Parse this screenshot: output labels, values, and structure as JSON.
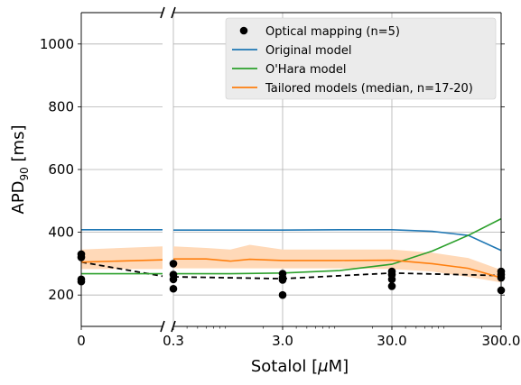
{
  "chart_data": {
    "type": "line",
    "xlabel": "Sotalol [μM]",
    "ylabel": "APD90 [ms]",
    "ylabel_main": "APD",
    "ylabel_sub": "90",
    "ylabel_unit": " [ms]",
    "xlabel_main": "Sotalol [",
    "xlabel_mu": "μ",
    "xlabel_unit": "M]",
    "x_scale": "broken: linear segment at 0, log segment 0.3–300",
    "ylim": [
      100,
      1100
    ],
    "y_ticks": [
      "200",
      "400",
      "600",
      "800",
      "1000"
    ],
    "x_ticks": [
      "0",
      "0.3",
      "3.0",
      "30.0",
      "300.0"
    ],
    "grid": true,
    "legend_position": "top-right",
    "legend": [
      {
        "label": "Optical mapping (n=5)",
        "color": "#000000",
        "marker": "dot"
      },
      {
        "label": "Original model",
        "color": "#1f77b4",
        "marker": "line"
      },
      {
        "label": "O'Hara model",
        "color": "#2ca02c",
        "marker": "line"
      },
      {
        "label": "Tailored models (median, n=17-20)",
        "color": "#ff7f0e",
        "marker": "line"
      }
    ],
    "series": [
      {
        "name": "Optical mapping (n=5)",
        "kind": "scatter",
        "color": "#000000",
        "points": [
          {
            "x": 0,
            "y": 330
          },
          {
            "x": 0,
            "y": 320
          },
          {
            "x": 0,
            "y": 250
          },
          {
            "x": 0,
            "y": 243
          },
          {
            "x": 0.3,
            "y": 300
          },
          {
            "x": 0.3,
            "y": 265
          },
          {
            "x": 0.3,
            "y": 250
          },
          {
            "x": 0.3,
            "y": 220
          },
          {
            "x": 3,
            "y": 268
          },
          {
            "x": 3,
            "y": 255
          },
          {
            "x": 3,
            "y": 248
          },
          {
            "x": 3,
            "y": 200
          },
          {
            "x": 30,
            "y": 275
          },
          {
            "x": 30,
            "y": 265
          },
          {
            "x": 30,
            "y": 250
          },
          {
            "x": 30,
            "y": 228
          },
          {
            "x": 300,
            "y": 275
          },
          {
            "x": 300,
            "y": 265
          },
          {
            "x": 300,
            "y": 255
          },
          {
            "x": 300,
            "y": 215
          }
        ]
      },
      {
        "name": "Optical mapping mean",
        "kind": "dashed",
        "color": "#000000",
        "points": [
          {
            "x": 0,
            "y": 305
          },
          {
            "x": 0.08,
            "y": 260
          },
          {
            "x": 0.3,
            "y": 258
          },
          {
            "x": 3,
            "y": 252
          },
          {
            "x": 30,
            "y": 270
          },
          {
            "x": 300,
            "y": 262
          }
        ]
      },
      {
        "name": "Original model",
        "kind": "line",
        "color": "#1f77b4",
        "points": [
          {
            "x": 0,
            "y": 408
          },
          {
            "x": 0.08,
            "y": 408
          },
          {
            "x": 0.3,
            "y": 407
          },
          {
            "x": 1,
            "y": 407
          },
          {
            "x": 3,
            "y": 407
          },
          {
            "x": 10,
            "y": 408
          },
          {
            "x": 30,
            "y": 408
          },
          {
            "x": 70,
            "y": 403
          },
          {
            "x": 150,
            "y": 390
          },
          {
            "x": 300,
            "y": 342
          }
        ]
      },
      {
        "name": "O'Hara model",
        "kind": "line",
        "color": "#2ca02c",
        "points": [
          {
            "x": 0,
            "y": 268
          },
          {
            "x": 0.08,
            "y": 268
          },
          {
            "x": 0.3,
            "y": 268
          },
          {
            "x": 1,
            "y": 268
          },
          {
            "x": 3,
            "y": 270
          },
          {
            "x": 10,
            "y": 278
          },
          {
            "x": 30,
            "y": 298
          },
          {
            "x": 70,
            "y": 340
          },
          {
            "x": 150,
            "y": 390
          },
          {
            "x": 300,
            "y": 443
          }
        ]
      },
      {
        "name": "Tailored models (median, n=17-20)",
        "kind": "band",
        "color": "#ff7f0e",
        "band_color": "#ffd9b8",
        "points": [
          {
            "x": 0,
            "y": 305,
            "lo": 283,
            "hi": 345
          },
          {
            "x": 0.08,
            "y": 312,
            "lo": 283,
            "hi": 355
          },
          {
            "x": 0.3,
            "y": 315,
            "lo": 285,
            "hi": 355
          },
          {
            "x": 0.6,
            "y": 315,
            "lo": 285,
            "hi": 350
          },
          {
            "x": 1,
            "y": 308,
            "lo": 285,
            "hi": 345
          },
          {
            "x": 1.5,
            "y": 314,
            "lo": 285,
            "hi": 360
          },
          {
            "x": 3,
            "y": 310,
            "lo": 285,
            "hi": 345
          },
          {
            "x": 10,
            "y": 310,
            "lo": 285,
            "hi": 345
          },
          {
            "x": 30,
            "y": 311,
            "lo": 283,
            "hi": 345
          },
          {
            "x": 70,
            "y": 300,
            "lo": 275,
            "hi": 335
          },
          {
            "x": 150,
            "y": 285,
            "lo": 258,
            "hi": 318
          },
          {
            "x": 300,
            "y": 255,
            "lo": 240,
            "hi": 280
          }
        ]
      }
    ]
  }
}
